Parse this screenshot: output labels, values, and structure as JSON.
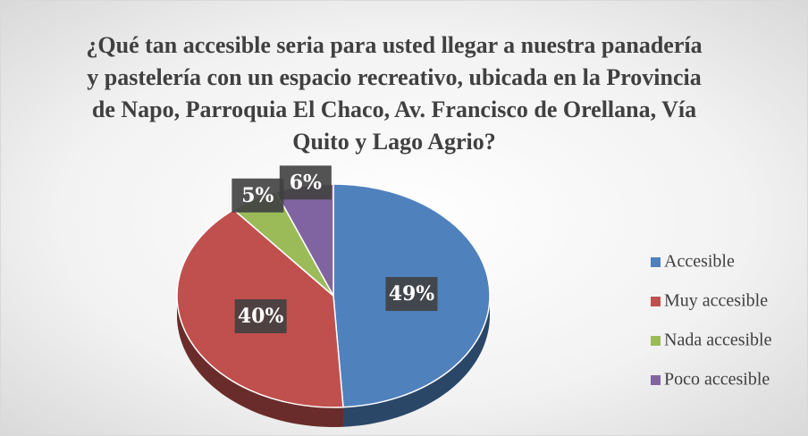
{
  "chart_data": {
    "type": "pie",
    "title": "¿Qué tan accesible seria para usted llegar a nuestra panadería y pastelería con un espacio recreativo, ubicada en la Provincia de Napo, Parroquia El Chaco, Av. Francisco de Orellana, Vía Quito y Lago Agrio?",
    "categories": [
      "Accesible",
      "Muy accesible",
      "Nada accesible",
      "Poco accesible"
    ],
    "values": [
      49,
      40,
      5,
      6
    ],
    "value_labels": [
      "49%",
      "40%",
      "5%",
      "6%"
    ],
    "colors": [
      "#4f81bd",
      "#c0504d",
      "#9bbb59",
      "#8064a2"
    ],
    "legend": "right"
  }
}
